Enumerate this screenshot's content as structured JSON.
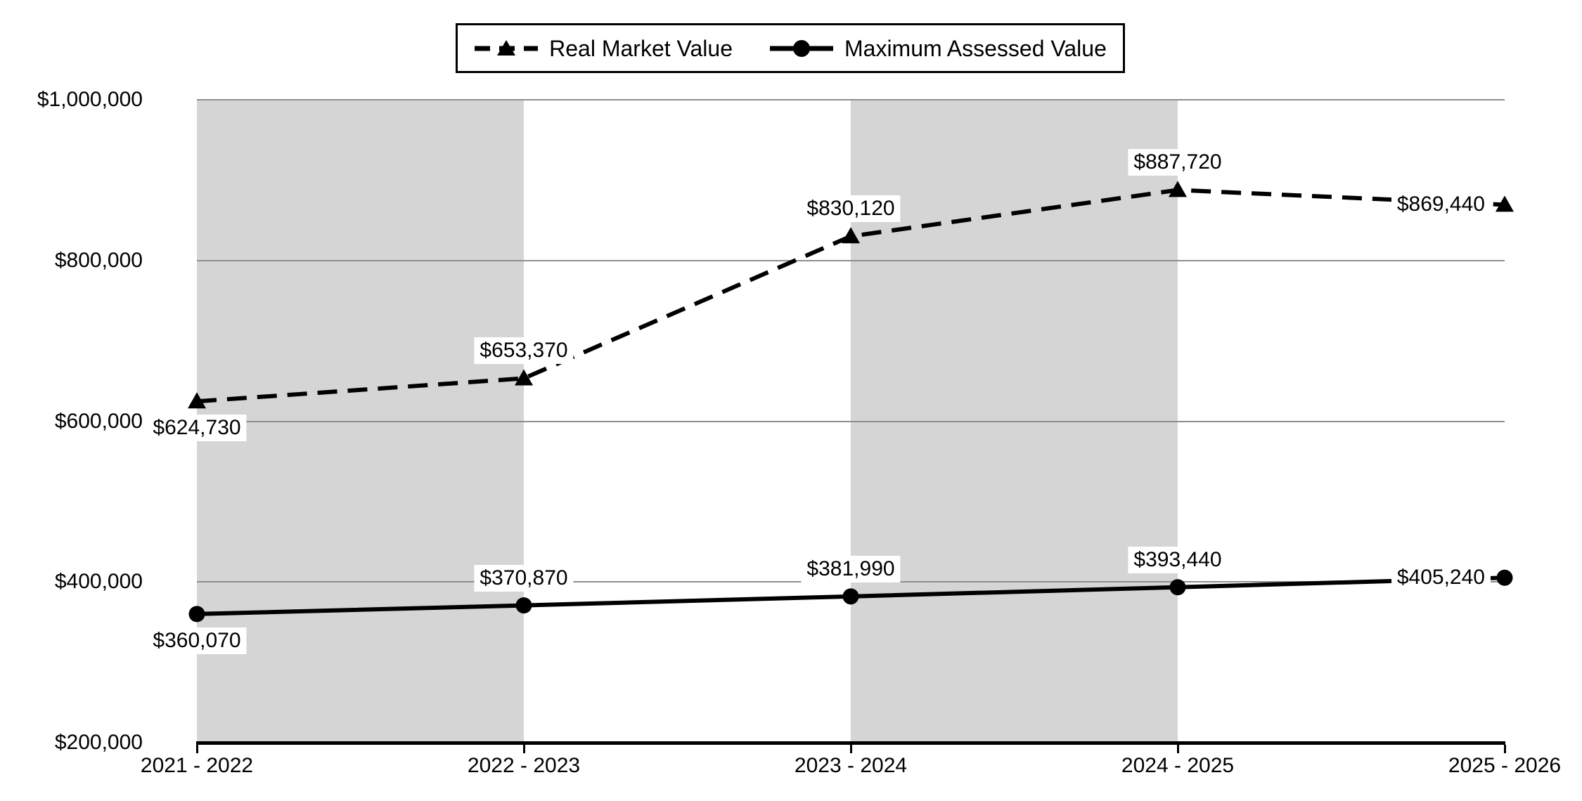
{
  "chart_data": {
    "type": "line",
    "title": "",
    "categories": [
      "2021 - 2022",
      "2022 - 2023",
      "2023 - 2024",
      "2024 - 2025",
      "2025 - 2026"
    ],
    "series": [
      {
        "name": "Real Market Value",
        "line_style": "dashed",
        "marker": "triangle",
        "color": "#000000",
        "values": [
          624730,
          653370,
          830120,
          887720,
          869440
        ],
        "data_labels": [
          "$624,730",
          "$653,370",
          "$830,120",
          "$887,720",
          "$869,440"
        ],
        "label_placements": [
          "below",
          "above",
          "above",
          "above",
          "left"
        ]
      },
      {
        "name": "Maximum Assessed Value",
        "line_style": "solid",
        "marker": "circle",
        "color": "#000000",
        "values": [
          360070,
          370870,
          381990,
          393440,
          405240
        ],
        "data_labels": [
          "$360,070",
          "$370,870",
          "$381,990",
          "$393,440",
          "$405,240"
        ],
        "label_placements": [
          "below",
          "above",
          "above",
          "above",
          "left"
        ]
      }
    ],
    "y_axis": {
      "min": 200000,
      "max": 1000000,
      "tick_interval": 200000,
      "tick_labels": [
        "$1,000,000",
        "$800,000",
        "$600,000",
        "$400,000",
        "$200,000"
      ]
    },
    "legend": {
      "position": "top",
      "entries": [
        "Real Market Value",
        "Maximum Assessed Value"
      ]
    },
    "plot_bands": {
      "shaded_category_gaps": [
        0,
        2
      ],
      "color": "#d5d5d5"
    },
    "gridlines": {
      "shown": true,
      "color": "#8e8e8e"
    },
    "axis_color": "#000000",
    "label_background": "#ffffff",
    "chart_background": "#ffffff"
  }
}
